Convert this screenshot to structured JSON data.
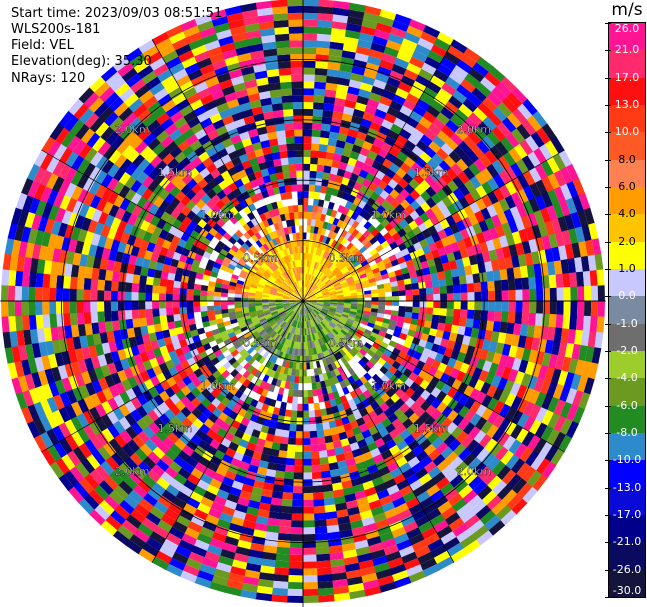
{
  "header": {
    "start_time": "Start time: 2023/09/03 08:51:51",
    "station": "WLS200s-181",
    "field": "Field: VEL",
    "elevation": "Elevation(deg): 35.30",
    "nrays": "NRays: 120"
  },
  "chart_data": {
    "type": "heatmap",
    "projection": "polar-ppi",
    "field": "VEL",
    "unit": "m/s",
    "n_rays": 120,
    "elevation_deg": 35.3,
    "range_rings_km": [
      0.5,
      1.0,
      1.5,
      2.0
    ],
    "range_ring_labels": [
      "0.5km",
      "1.0km",
      "1.5km",
      "2.0km"
    ],
    "colorbar": {
      "unit_label": "m/s",
      "tick_labels": [
        "26.0",
        "21.0",
        "17.0",
        "13.0",
        "10.0",
        "8.0",
        "6.0",
        "4.0",
        "2.0",
        "1.0",
        "0.0",
        "-1.0",
        "-2.0",
        "-4.0",
        "-6.0",
        "-8.0",
        "-10.0",
        "-13.0",
        "-17.0",
        "-21.0",
        "-26.0",
        "-30.0"
      ],
      "colors": [
        "#ff1493",
        "#ff2a6d",
        "#ff1010",
        "#ff3a14",
        "#ff5a26",
        "#ff8050",
        "#ff9c00",
        "#ffc400",
        "#ffff00",
        "#c8c8ff",
        "#7a8aa0",
        "#6e6e6e",
        "#9ccd2c",
        "#6a9a20",
        "#228b22",
        "#2e8bcb",
        "#0000ff",
        "#0a0ad8",
        "#00008b",
        "#0a0a60",
        "#14143c"
      ]
    },
    "legend_placement": "right",
    "notes_visible": "near range: warm colors (orange/yellow) to north, green/gray to south; outer ranges noisy"
  }
}
